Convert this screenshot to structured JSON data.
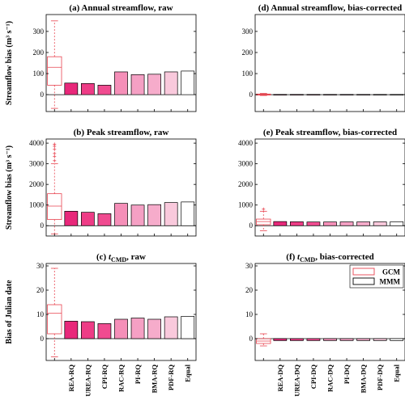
{
  "figure": {
    "legend": [
      {
        "label": "GCM",
        "color": "#e8434f"
      },
      {
        "label": "MMM",
        "color": "#000000"
      }
    ],
    "legend_panel": "f",
    "legend_placement": "top-right"
  },
  "chart_data": [
    {
      "id": "a",
      "type": "bar",
      "title_prefix": "(a)",
      "title_text": "Annual streamflow, raw",
      "ylabel": "Streamflow bias (m³ s⁻¹)",
      "ylim": [
        -80,
        380
      ],
      "yticks": [
        0,
        100,
        200,
        300
      ],
      "categories": [
        "",
        "REA-RQ",
        "UREA-RQ",
        "CPI-RQ",
        "RAC-RQ",
        "PI-RQ",
        "BMA-RQ",
        "PDF-RQ",
        "Equal"
      ],
      "show_categories": false,
      "gcm_box": {
        "whisker_low": -65,
        "q1": 45,
        "median": 130,
        "q3": 180,
        "whisker_high": 350,
        "outliers": []
      },
      "values": [
        null,
        55,
        53,
        45,
        108,
        95,
        97,
        108,
        112
      ]
    },
    {
      "id": "d",
      "type": "bar",
      "title_prefix": "(d)",
      "title_text": "Annual streamflow, bias-corrected",
      "ylabel": "",
      "ylim": [
        -80,
        380
      ],
      "yticks": [
        0,
        100,
        200,
        300
      ],
      "categories": [
        "",
        "REA-DQ",
        "UREA-DQ",
        "CPI-DQ",
        "RAC-DQ",
        "PI-DQ",
        "BMA-DQ",
        "PDF-DQ",
        "Equal"
      ],
      "show_categories": false,
      "gcm_box": {
        "whisker_low": -4,
        "q1": -2,
        "median": 0,
        "q3": 3,
        "whisker_high": 6,
        "outliers": []
      },
      "values": [
        null,
        1,
        1,
        1,
        1,
        1,
        1,
        1,
        1
      ]
    },
    {
      "id": "b",
      "type": "bar",
      "title_prefix": "(b)",
      "title_text": "Peak streamflow, raw",
      "ylabel": "Streamflow bias (m³ s⁻¹)",
      "ylim": [
        -500,
        4200
      ],
      "yticks": [
        0,
        1000,
        2000,
        3000,
        4000
      ],
      "categories": [
        "",
        "REA-RQ",
        "UREA-RQ",
        "CPI-RQ",
        "RAC-RQ",
        "PI-RQ",
        "BMA-RQ",
        "PDF-RQ",
        "Equal"
      ],
      "show_categories": false,
      "gcm_box": {
        "whisker_low": -400,
        "q1": 300,
        "median": 950,
        "q3": 1550,
        "whisker_high": 3000,
        "outliers": [
          3150,
          3350,
          3500,
          3700,
          3850,
          3950
        ]
      },
      "values": [
        null,
        700,
        650,
        580,
        1080,
        1000,
        1020,
        1120,
        1150
      ]
    },
    {
      "id": "e",
      "type": "bar",
      "title_prefix": "(e)",
      "title_text": "Peak streamflow, bias-corrected",
      "ylabel": "",
      "ylim": [
        -500,
        4200
      ],
      "yticks": [
        0,
        1000,
        2000,
        3000,
        4000
      ],
      "categories": [
        "",
        "REA-DQ",
        "UREA-DQ",
        "CPI-DQ",
        "RAC-DQ",
        "PI-DQ",
        "BMA-DQ",
        "PDF-DQ",
        "Equal"
      ],
      "show_categories": false,
      "gcm_box": {
        "whisker_low": -250,
        "q1": 50,
        "median": 200,
        "q3": 320,
        "whisker_high": 700,
        "outliers": [
          800
        ]
      },
      "values": [
        null,
        200,
        190,
        180,
        180,
        185,
        185,
        185,
        190
      ]
    },
    {
      "id": "c",
      "type": "bar",
      "title_prefix": "(c)",
      "title_italic": "t",
      "title_sub": "CMD",
      "title_text": ", raw",
      "ylabel": "Bias of Julian date",
      "ylim": [
        -9,
        31
      ],
      "yticks": [
        0,
        10,
        20,
        30
      ],
      "categories": [
        "",
        "REA-RQ",
        "UREA-RQ",
        "CPI-RQ",
        "RAC-RQ",
        "PI-RQ",
        "BMA-RQ",
        "PDF-RQ",
        "Equal"
      ],
      "show_categories": true,
      "gcm_box": {
        "whisker_low": -7.5,
        "q1": 2,
        "median": 10.5,
        "q3": 14,
        "whisker_high": 29,
        "outliers": []
      },
      "values": [
        null,
        7.2,
        7.0,
        6.2,
        8.0,
        8.5,
        8.0,
        9.0,
        9.2
      ]
    },
    {
      "id": "f",
      "type": "bar",
      "title_prefix": "(f)",
      "title_italic": "t",
      "title_sub": "CMD",
      "title_text": ", bias-corrected",
      "ylabel": "",
      "ylim": [
        -9,
        31
      ],
      "yticks": [
        0,
        10,
        20,
        30
      ],
      "categories": [
        "",
        "REA-DQ",
        "UREA-DQ",
        "CPI-DQ",
        "RAC-DQ",
        "PI-DQ",
        "BMA-DQ",
        "PDF-DQ",
        "Equal"
      ],
      "show_categories": true,
      "gcm_box": {
        "whisker_low": -3,
        "q1": -2,
        "median": -1,
        "q3": 0,
        "whisker_high": 2,
        "outliers": []
      },
      "values": [
        null,
        -0.8,
        -0.8,
        -0.8,
        -0.8,
        -0.8,
        -0.8,
        -0.8,
        -0.8
      ]
    }
  ]
}
